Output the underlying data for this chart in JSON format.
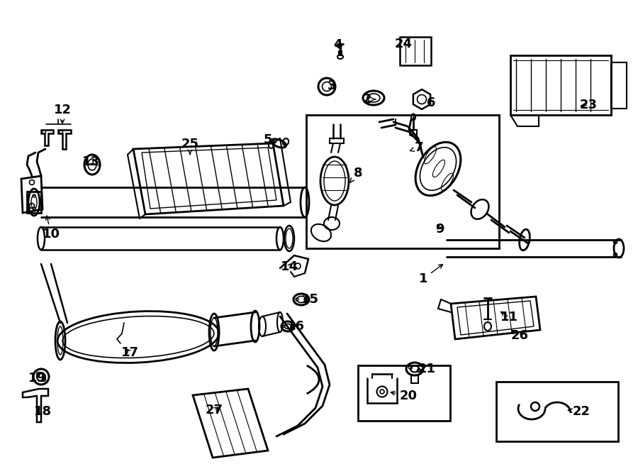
{
  "bg_color": "#ffffff",
  "line_color": "#000000",
  "figsize": [
    9.0,
    6.61
  ],
  "dpi": 100,
  "annotations": [
    [
      "1",
      597,
      393,
      628,
      370,
      "←"
    ],
    [
      "2",
      518,
      140,
      530,
      140,
      "←"
    ],
    [
      "3",
      468,
      121,
      468,
      126,
      "←"
    ],
    [
      "4",
      476,
      63,
      481,
      72,
      "←"
    ],
    [
      "5",
      378,
      197,
      393,
      202,
      "←"
    ],
    [
      "6",
      608,
      145,
      601,
      145,
      "←"
    ],
    [
      "7",
      591,
      208,
      577,
      213,
      "←"
    ],
    [
      "8",
      505,
      244,
      493,
      258,
      "↓"
    ],
    [
      "9",
      620,
      323,
      615,
      313,
      "↑"
    ],
    [
      "10",
      72,
      330,
      65,
      300,
      "↑"
    ],
    [
      "11",
      718,
      447,
      703,
      437,
      "←"
    ],
    [
      "12",
      88,
      155,
      88,
      178,
      "↓"
    ],
    [
      "13",
      128,
      228,
      136,
      235,
      "↓"
    ],
    [
      "14",
      408,
      376,
      415,
      368,
      "←"
    ],
    [
      "15",
      437,
      422,
      426,
      422,
      "←"
    ],
    [
      "16",
      417,
      460,
      406,
      460,
      "←"
    ],
    [
      "17",
      183,
      497,
      175,
      489,
      "↑"
    ],
    [
      "18",
      60,
      580,
      57,
      572,
      "↑"
    ],
    [
      "19",
      52,
      533,
      55,
      533,
      "↑"
    ],
    [
      "20",
      576,
      558,
      547,
      552,
      "←"
    ],
    [
      "21",
      602,
      520,
      593,
      520,
      "←"
    ],
    [
      "22",
      820,
      580,
      800,
      578,
      "←"
    ],
    [
      "23",
      830,
      148,
      815,
      150,
      "←"
    ],
    [
      "24",
      569,
      62,
      575,
      68,
      "←"
    ],
    [
      "25",
      268,
      203,
      268,
      218,
      "↓"
    ],
    [
      "26",
      733,
      473,
      718,
      463,
      "←"
    ],
    [
      "27",
      302,
      578,
      312,
      572,
      "←"
    ]
  ]
}
